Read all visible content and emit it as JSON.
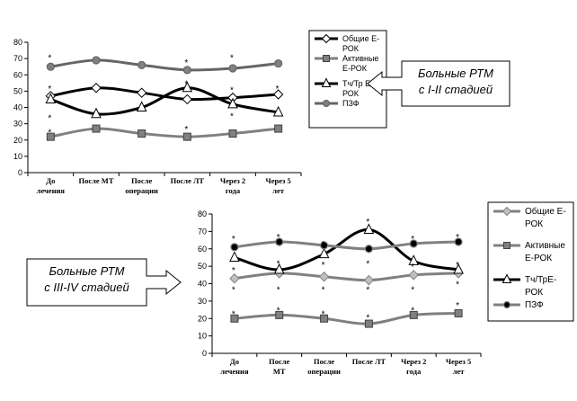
{
  "chart_data": [
    {
      "type": "line",
      "categories": [
        "До лечения",
        "После МТ",
        "После операции",
        "После ЛТ",
        "Через 2 года",
        "Через 5 лет"
      ],
      "ylim": [
        0,
        80
      ],
      "yticks": [
        0,
        10,
        20,
        30,
        40,
        50,
        60,
        70,
        80
      ],
      "grid": false,
      "legend_position": "right",
      "callout": [
        "Больные РТМ",
        "с I-II стадией"
      ],
      "series": [
        {
          "name": "Общие Е-РОК",
          "values": [
            47,
            52,
            49,
            45,
            46,
            48
          ],
          "marker": "diamond",
          "color": "#000000",
          "fill": "#ffffff"
        },
        {
          "name": "Активные Е-РОК",
          "values": [
            22,
            27,
            24,
            22,
            24,
            27
          ],
          "marker": "square",
          "color": "#808080",
          "fill": "#808080"
        },
        {
          "name": "Тч/Тр Е-РОК",
          "values": [
            45,
            36,
            40,
            52,
            42,
            37
          ],
          "marker": "triangle",
          "color": "#000000",
          "fill": "#ffffff"
        },
        {
          "name": "ПЗФ",
          "values": [
            65,
            69,
            66,
            63,
            64,
            67
          ],
          "marker": "circle",
          "color": "#666666",
          "fill": "#808080"
        }
      ],
      "annotations": [
        {
          "category": "До лечения",
          "value": 71,
          "text": "*"
        },
        {
          "category": "До лечения",
          "value": 52,
          "text": "*"
        },
        {
          "category": "До лечения",
          "value": 34,
          "text": "*"
        },
        {
          "category": "До лечения",
          "value": 25,
          "text": "*"
        },
        {
          "category": "После ЛТ",
          "value": 68,
          "text": "*"
        },
        {
          "category": "После ЛТ",
          "value": 55,
          "text": "*"
        },
        {
          "category": "После ЛТ",
          "value": 27,
          "text": "*"
        },
        {
          "category": "Через 2 года",
          "value": 71,
          "text": "*"
        },
        {
          "category": "Через 2 года",
          "value": 51,
          "text": "*"
        },
        {
          "category": "Через 2 года",
          "value": 35,
          "text": "*"
        },
        {
          "category": "Через 5 лет",
          "value": 52,
          "text": "*"
        }
      ]
    },
    {
      "type": "line",
      "categories": [
        "До лечения",
        "После МТ",
        "После операции",
        "После ЛТ",
        "Через 2 года",
        "Через 5 лет"
      ],
      "ylim": [
        0,
        80
      ],
      "yticks": [
        0,
        10,
        20,
        30,
        40,
        50,
        60,
        70,
        80
      ],
      "grid": false,
      "legend_position": "right",
      "callout": [
        "Больные РТМ",
        "с III-IV стадией"
      ],
      "series": [
        {
          "name": "Общие Е-РОК",
          "values": [
            43,
            46,
            44,
            42,
            45,
            46
          ],
          "marker": "diamond",
          "color": "#808080",
          "fill": "#c0c0c0"
        },
        {
          "name": "Активные Е-РОК",
          "values": [
            20,
            22,
            20,
            17,
            22,
            23
          ],
          "marker": "square",
          "color": "#808080",
          "fill": "#808080"
        },
        {
          "name": "Тч/ТрЕ-РОК",
          "values": [
            55,
            48,
            57,
            71,
            53,
            48
          ],
          "marker": "triangle",
          "color": "#000000",
          "fill": "#ffffff"
        },
        {
          "name": "ПЗФ",
          "values": [
            61,
            64,
            62,
            60,
            63,
            64
          ],
          "marker": "circle",
          "color": "#808080",
          "fill": "#000000"
        }
      ],
      "annotations": [
        {
          "category": "До лечения",
          "value": 66,
          "text": "*"
        },
        {
          "category": "До лечения",
          "value": 48,
          "text": "*"
        },
        {
          "category": "До лечения",
          "value": 37,
          "text": "*"
        },
        {
          "category": "До лечения",
          "value": 23,
          "text": "*"
        },
        {
          "category": "После МТ",
          "value": 67,
          "text": "*"
        },
        {
          "category": "После МТ",
          "value": 52,
          "text": "*"
        },
        {
          "category": "После МТ",
          "value": 37,
          "text": "*"
        },
        {
          "category": "После МТ",
          "value": 25,
          "text": "*"
        },
        {
          "category": "После операции",
          "value": 63,
          "text": "*"
        },
        {
          "category": "После операции",
          "value": 51,
          "text": "*"
        },
        {
          "category": "После операции",
          "value": 37,
          "text": "*"
        },
        {
          "category": "После операции",
          "value": 23,
          "text": "*"
        },
        {
          "category": "После ЛТ",
          "value": 76,
          "text": "*"
        },
        {
          "category": "После ЛТ",
          "value": 52,
          "text": "*"
        },
        {
          "category": "После ЛТ",
          "value": 37,
          "text": "*"
        },
        {
          "category": "После ЛТ",
          "value": 21,
          "text": "*"
        },
        {
          "category": "Через 2 года",
          "value": 66,
          "text": "*"
        },
        {
          "category": "Через 2 года",
          "value": 50,
          "text": "*"
        },
        {
          "category": "Через 2 года",
          "value": 37,
          "text": "*"
        },
        {
          "category": "Через 2 года",
          "value": 25,
          "text": "*"
        },
        {
          "category": "Через 5 лет",
          "value": 67,
          "text": "*"
        },
        {
          "category": "Через 5 лет",
          "value": 51,
          "text": "*"
        },
        {
          "category": "Через 5 лет",
          "value": 40,
          "text": "*"
        },
        {
          "category": "Через 5 лет",
          "value": 28,
          "text": "*"
        }
      ]
    }
  ]
}
